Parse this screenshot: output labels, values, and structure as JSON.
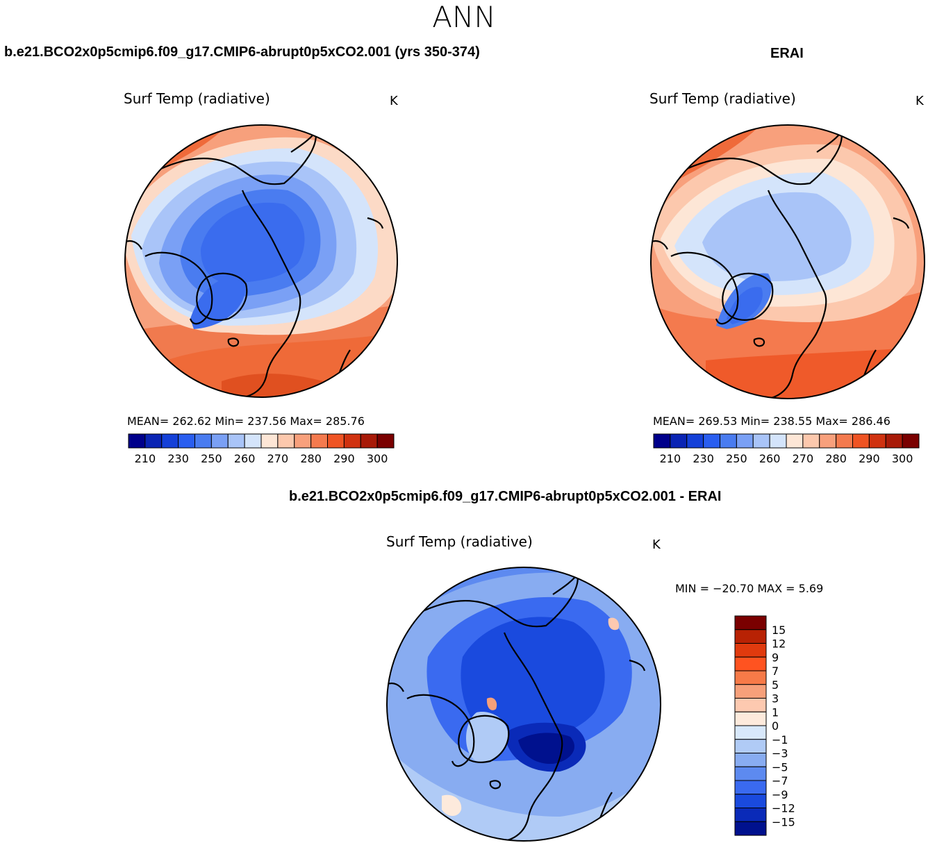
{
  "season": "ANN",
  "panels": [
    {
      "case_title": "b.e21.BCO2x0p5cmip6.f09_g17.CMIP6-abrupt0p5xCO2.001 (yrs 350-374)",
      "variable": "Surf Temp (radiative)",
      "units": "K",
      "stats": "MEAN= 262.62   Min= 237.56   Max= 285.76"
    },
    {
      "case_title": "ERAI",
      "variable": "Surf Temp (radiative)",
      "units": "K",
      "stats": "MEAN= 269.53   Min= 238.55   Max= 286.46"
    }
  ],
  "diff_panel": {
    "case_title": "b.e21.BCO2x0p5cmip6.f09_g17.CMIP6-abrupt0p5xCO2.001 - ERAI",
    "variable": "Surf Temp (radiative)",
    "units": "K",
    "stats": "MIN = −20.70 MAX =    5.69"
  },
  "colorbar_abs": {
    "colors": [
      "#00008b",
      "#0a24b4",
      "#1440d8",
      "#2a5ef0",
      "#4a7cf0",
      "#7aa0f5",
      "#a9c4f8",
      "#d4e4fb",
      "#fde6d6",
      "#fcc8ad",
      "#f8a07c",
      "#f47a4e",
      "#ef5424",
      "#d03210",
      "#a81a08",
      "#7a0000"
    ],
    "tick_labels": [
      "210",
      "230",
      "250",
      "260",
      "270",
      "280",
      "290",
      "300"
    ]
  },
  "colorbar_diff": {
    "colors": [
      "#7a0000",
      "#b82204",
      "#e03a0e",
      "#ff5320",
      "#f77a48",
      "#f7a07a",
      "#fdc9b0",
      "#fdeadc",
      "#d8e8fb",
      "#b0cbf6",
      "#88acf1",
      "#5d8af0",
      "#3a6af0",
      "#1a4ade",
      "#0a2ab8",
      "#00118e"
    ],
    "tick_labels": [
      "15",
      "12",
      "9",
      "7",
      "5",
      "3",
      "1",
      "0",
      "−1",
      "−3",
      "−5",
      "−7",
      "−9",
      "−12",
      "−15"
    ]
  }
}
